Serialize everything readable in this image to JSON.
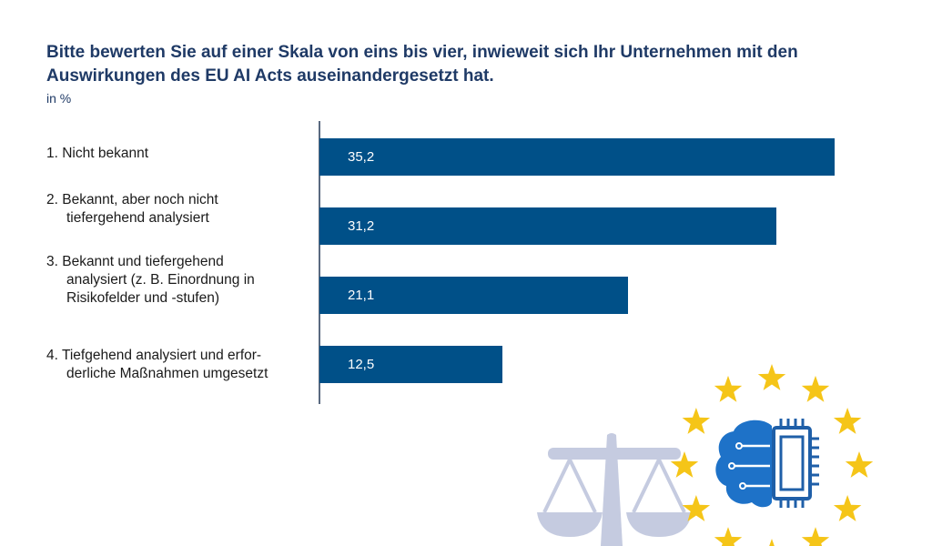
{
  "title_lines": [
    "Bitte bewerten Sie auf einer Skala von eins bis vier, inwieweit sich Ihr Unternehmen mit den",
    "Auswirkungen des EU AI Acts auseinandergesetzt hat."
  ],
  "unit": "in %",
  "colors": {
    "bar": "#005088",
    "title": "#1f3a66",
    "star": "#f5c518",
    "scale": "#c5cbe0",
    "brain": "#1e72c8",
    "chip": "#1f5fa8"
  },
  "icons": [
    "scales-of-justice-icon",
    "ai-brain-chip-icon",
    "eu-stars-icon"
  ],
  "chart_data": {
    "type": "bar",
    "orientation": "horizontal",
    "title": "Bitte bewerten Sie auf einer Skala von eins bis vier, inwieweit sich Ihr Unternehmen mit den Auswirkungen des EU AI Acts auseinandergesetzt hat.",
    "unit": "in %",
    "categories": [
      "1. Nicht bekannt",
      "2. Bekannt, aber noch nicht tiefergehend analysiert",
      "3. Bekannt und tiefergehend analysiert (z. B. Einordnung in Risikofelder und -stufen)",
      "4. Tiefgehend analysiert und erforderliche Maßnahmen umgesetzt"
    ],
    "category_lines": [
      [
        "1. Nicht bekannt"
      ],
      [
        "2.  Bekannt, aber noch nicht",
        "tiefergehend analysiert"
      ],
      [
        "3. Bekannt und tiefergehend",
        "analysiert (z. B. Einordnung in",
        "Risikofelder und -stufen)"
      ],
      [
        "4. Tiefgehend analysiert und erfor-",
        "derliche Maßnahmen umgesetzt"
      ]
    ],
    "values": [
      35.2,
      31.2,
      21.1,
      12.5
    ],
    "value_labels": [
      "35,2",
      "31,2",
      "21,1",
      "12,5"
    ],
    "xlim": [
      0,
      36.7
    ],
    "grid": false,
    "legend": "none"
  }
}
